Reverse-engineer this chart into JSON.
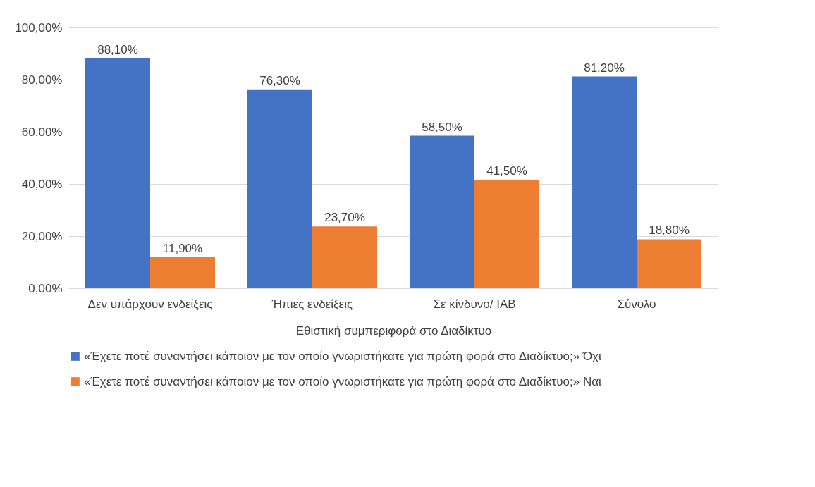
{
  "chart_data": {
    "type": "bar",
    "xlabel": "Εθιστική συμπεριφορά στο Διαδίκτυο",
    "categories": [
      "Δεν υπάρχουν ενδείξεις",
      "Ήπιες ενδείξεις",
      "Σε κίνδυνο/ ΙΑΒ",
      "Σύνολο"
    ],
    "series": [
      {
        "name": "«Έχετε ποτέ συναντήσει κάποιον με τον οποίο γνωριστήκατε για πρώτη φορά στο Διαδίκτυο;» Όχι",
        "color": "#4472c4",
        "values": [
          88.1,
          76.3,
          58.5,
          81.2
        ],
        "value_labels": [
          "88,10%",
          "76,30%",
          "58,50%",
          "81,20%"
        ]
      },
      {
        "name": "«Έχετε ποτέ συναντήσει κάποιον με τον οποίο γνωριστήκατε για πρώτη φορά στο Διαδίκτυο;» Ναι",
        "color": "#ed7d31",
        "values": [
          11.9,
          23.7,
          41.5,
          18.8
        ],
        "value_labels": [
          "11,90%",
          "23,70%",
          "41,50%",
          "18,80%"
        ]
      }
    ],
    "ylim": [
      0,
      100
    ],
    "yticks": [
      {
        "value": 0,
        "label": "0,00%"
      },
      {
        "value": 20,
        "label": "20,00%"
      },
      {
        "value": 40,
        "label": "40,00%"
      },
      {
        "value": 60,
        "label": "60,00%"
      },
      {
        "value": 80,
        "label": "80,00%"
      },
      {
        "value": 100,
        "label": "100,00%"
      }
    ],
    "grid": "y",
    "legend": "bottom"
  }
}
